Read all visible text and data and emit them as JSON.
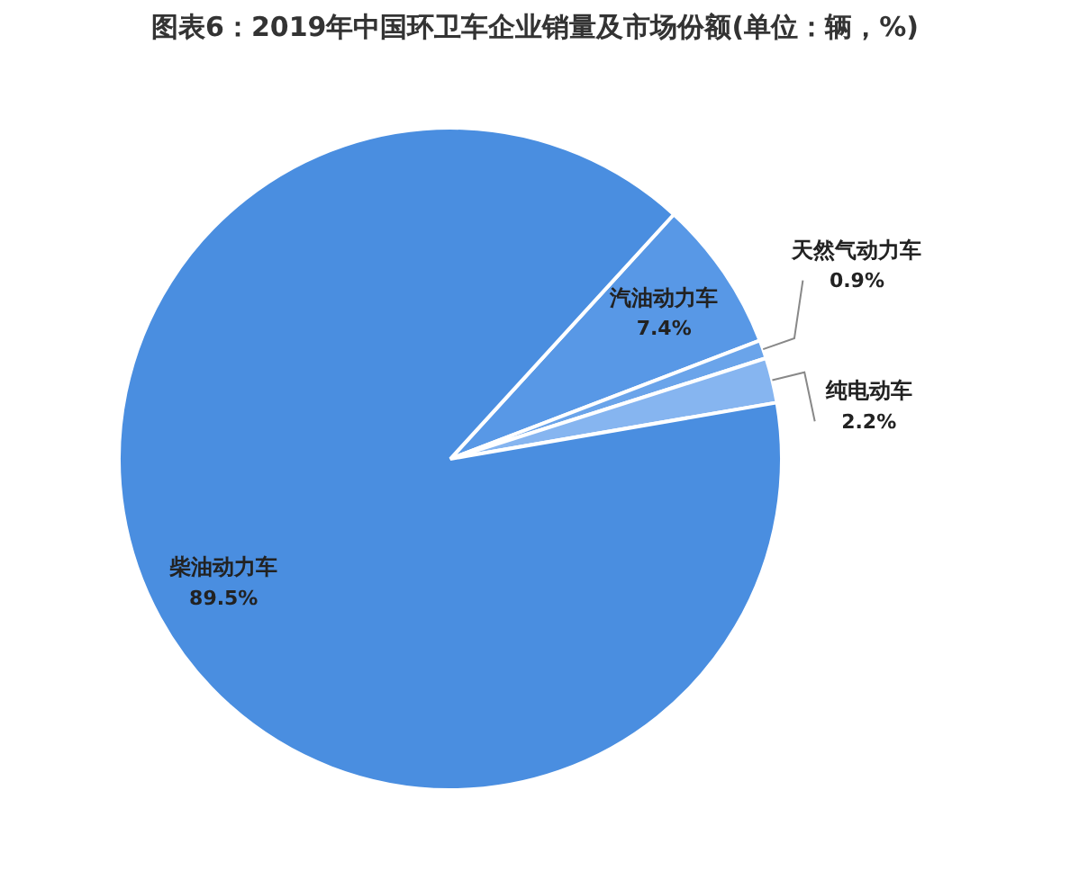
{
  "chart_data": {
    "type": "pie",
    "title": "图表6：2019年中国环卫车企业销量及市场份额(单位：辆，%)",
    "categories": [
      "汽油动力车",
      "天然气动力车",
      "纯电动车",
      "柴油动力车"
    ],
    "values": [
      7.4,
      0.9,
      2.2,
      89.5
    ],
    "colors": [
      "#5898e6",
      "#6aa4ea",
      "#86b5f0",
      "#4a8ee0"
    ],
    "value_labels": [
      "7.4%",
      "0.9%",
      "2.2%",
      "89.5%"
    ],
    "legend": false
  }
}
